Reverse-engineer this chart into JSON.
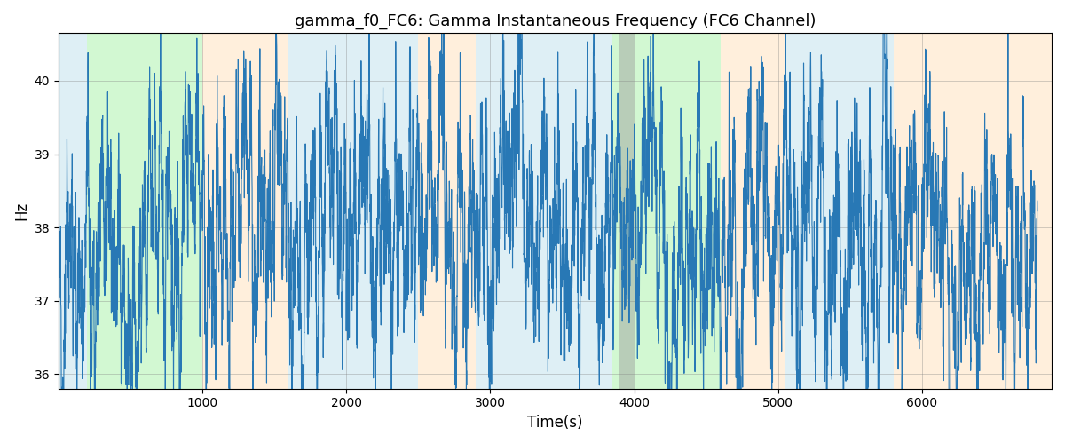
{
  "title": "gamma_f0_FC6: Gamma Instantaneous Frequency (FC6 Channel)",
  "xlabel": "Time(s)",
  "ylabel": "Hz",
  "ylim": [
    35.8,
    40.65
  ],
  "xlim": [
    0,
    6900
  ],
  "line_color": "#2878b5",
  "line_width": 0.8,
  "bg_bands": [
    {
      "xmin": 0,
      "xmax": 200,
      "color": "#add8e6",
      "alpha": 0.4
    },
    {
      "xmin": 200,
      "xmax": 1000,
      "color": "#90ee90",
      "alpha": 0.4
    },
    {
      "xmin": 1000,
      "xmax": 1600,
      "color": "#ffd8a8",
      "alpha": 0.4
    },
    {
      "xmin": 1600,
      "xmax": 2500,
      "color": "#add8e6",
      "alpha": 0.4
    },
    {
      "xmin": 2500,
      "xmax": 2900,
      "color": "#ffd8a8",
      "alpha": 0.4
    },
    {
      "xmin": 2900,
      "xmax": 3850,
      "color": "#add8e6",
      "alpha": 0.4
    },
    {
      "xmin": 3850,
      "xmax": 4600,
      "color": "#90ee90",
      "alpha": 0.4
    },
    {
      "xmin": 4600,
      "xmax": 5050,
      "color": "#ffd8a8",
      "alpha": 0.4
    },
    {
      "xmin": 5050,
      "xmax": 5800,
      "color": "#add8e6",
      "alpha": 0.4
    },
    {
      "xmin": 5800,
      "xmax": 6900,
      "color": "#ffd8a8",
      "alpha": 0.4
    }
  ],
  "gray_band": {
    "xmin": 3900,
    "xmax": 4000,
    "color": "#999999",
    "alpha": 0.45
  },
  "yticks": [
    36,
    37,
    38,
    39,
    40
  ],
  "xticks": [
    1000,
    2000,
    3000,
    4000,
    5000,
    6000
  ],
  "seed": 7,
  "n_points": 6800,
  "x_start": 0,
  "x_end": 6800
}
